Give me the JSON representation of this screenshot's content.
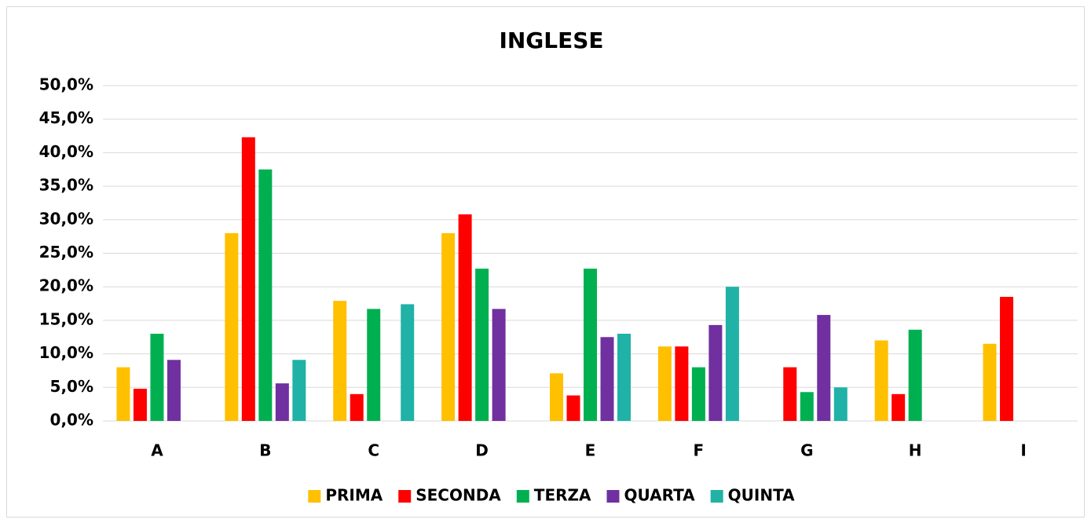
{
  "chart_data": {
    "type": "bar",
    "title": "INGLESE",
    "categories": [
      "A",
      "B",
      "C",
      "D",
      "E",
      "F",
      "G",
      "H",
      "I"
    ],
    "series": [
      {
        "name": "PRIMA",
        "color": "#ffc000",
        "values": [
          8.0,
          28.0,
          17.9,
          28.0,
          7.1,
          11.1,
          0,
          12.0,
          11.5
        ]
      },
      {
        "name": "SECONDA",
        "color": "#ff0000",
        "values": [
          4.8,
          42.3,
          4.0,
          30.8,
          3.8,
          11.1,
          8.0,
          4.0,
          18.5
        ]
      },
      {
        "name": "TERZA",
        "color": "#00b050",
        "values": [
          13.0,
          37.5,
          16.7,
          22.7,
          22.7,
          8.0,
          4.3,
          13.6,
          0
        ]
      },
      {
        "name": "QUARTA",
        "color": "#7030a0",
        "values": [
          9.1,
          5.6,
          0,
          16.7,
          12.5,
          14.3,
          15.8,
          0,
          0
        ]
      },
      {
        "name": "QUINTA",
        "color": "#20b2a6",
        "values": [
          0,
          9.1,
          17.4,
          0,
          13.0,
          20.0,
          5.0,
          0,
          0
        ]
      }
    ],
    "ylim": [
      0,
      50
    ],
    "yticks": [
      {
        "value": 0,
        "label": "0,0%"
      },
      {
        "value": 5,
        "label": "5,0%"
      },
      {
        "value": 10,
        "label": "10,0%"
      },
      {
        "value": 15,
        "label": "15,0%"
      },
      {
        "value": 20,
        "label": "20,0%"
      },
      {
        "value": 25,
        "label": "25,0%"
      },
      {
        "value": 30,
        "label": "30,0%"
      },
      {
        "value": 35,
        "label": "35,0%"
      },
      {
        "value": 40,
        "label": "40,0%"
      },
      {
        "value": 45,
        "label": "45,0%"
      },
      {
        "value": 50,
        "label": "50,0%"
      }
    ],
    "grid": true,
    "legend": "bottom"
  }
}
